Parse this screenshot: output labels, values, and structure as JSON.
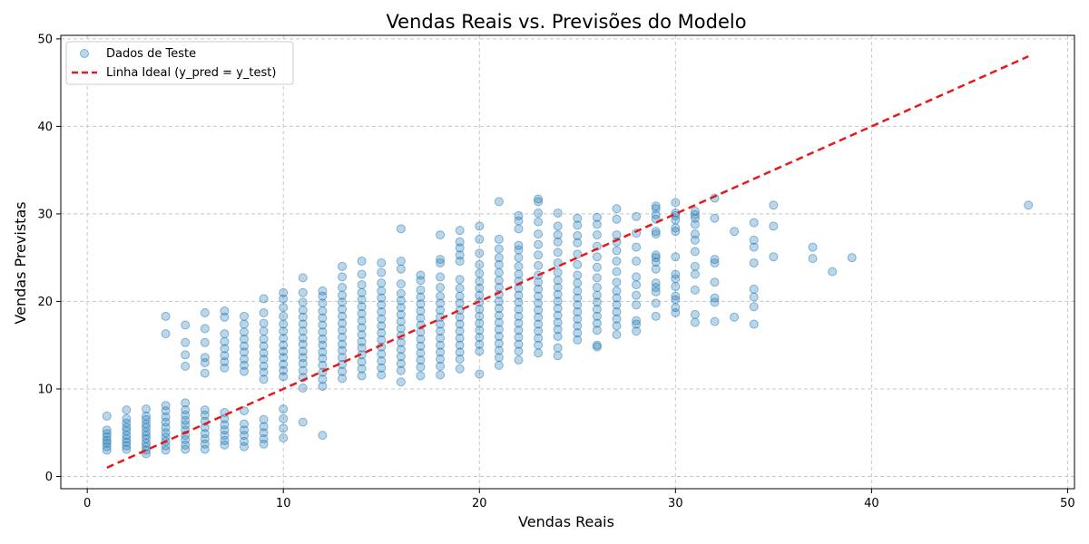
{
  "chart_data": {
    "type": "scatter",
    "title": "Vendas Reais vs. Previsões do Modelo",
    "xlabel": "Vendas Reais",
    "ylabel": "Vendas Previstas",
    "xlim": [
      -1.35,
      50.35
    ],
    "ylim": [
      -1.4,
      50.4
    ],
    "xticks": [
      0,
      10,
      20,
      30,
      40,
      50
    ],
    "yticks": [
      0,
      10,
      20,
      30,
      40,
      50
    ],
    "grid": true,
    "legend_position": "top-left",
    "colors": {
      "scatter": "#1f77b4",
      "ideal_line": "#e41a1c",
      "grid": "#c8c8c8"
    },
    "series": [
      {
        "name": "Dados de Teste",
        "kind": "scatter",
        "columns": [
          {
            "x": 1,
            "y": [
              3.0,
              3.4,
              3.8,
              4.1,
              4.5,
              4.9,
              5.3,
              6.9
            ]
          },
          {
            "x": 2,
            "y": [
              3.1,
              3.5,
              3.9,
              4.3,
              4.7,
              5.2,
              5.6,
              6.1,
              6.6,
              7.6
            ]
          },
          {
            "x": 3,
            "y": [
              2.6,
              3.0,
              3.4,
              3.8,
              4.3,
              4.7,
              5.1,
              5.6,
              6.0,
              6.5,
              6.9,
              7.7
            ]
          },
          {
            "x": 4,
            "y": [
              3.0,
              3.5,
              4.0,
              4.5,
              5.0,
              5.6,
              6.2,
              6.8,
              7.5,
              8.1,
              16.3,
              18.3
            ]
          },
          {
            "x": 5,
            "y": [
              3.1,
              3.6,
              4.2,
              4.7,
              5.3,
              5.9,
              6.4,
              7.0,
              7.6,
              8.4,
              12.6,
              13.9,
              15.3,
              17.3
            ]
          },
          {
            "x": 6,
            "y": [
              3.1,
              3.7,
              4.3,
              4.9,
              5.6,
              6.3,
              7.0,
              7.6,
              11.8,
              13.0,
              13.6,
              15.3,
              16.9,
              18.7
            ]
          },
          {
            "x": 7,
            "y": [
              3.6,
              4.1,
              4.7,
              5.3,
              5.9,
              6.6,
              7.3,
              12.4,
              13.1,
              13.8,
              14.6,
              15.4,
              16.3,
              18.2,
              18.9
            ]
          },
          {
            "x": 8,
            "y": [
              3.4,
              4.0,
              4.7,
              5.3,
              6.0,
              7.5,
              12.0,
              12.7,
              13.4,
              14.2,
              14.9,
              15.7,
              16.5,
              17.4,
              18.3
            ]
          },
          {
            "x": 9,
            "y": [
              3.7,
              4.3,
              5.0,
              5.7,
              6.5,
              11.1,
              11.9,
              12.6,
              13.4,
              14.1,
              14.9,
              15.7,
              16.6,
              17.5,
              18.7,
              20.3
            ]
          },
          {
            "x": 10,
            "y": [
              4.4,
              5.5,
              6.6,
              7.7,
              11.4,
              12.1,
              12.8,
              13.6,
              14.3,
              15.0,
              15.8,
              16.6,
              17.4,
              18.3,
              19.3,
              20.3,
              21.0
            ]
          },
          {
            "x": 11,
            "y": [
              6.2,
              10.1,
              11.3,
              12.1,
              12.9,
              13.6,
              14.3,
              15.1,
              15.8,
              16.6,
              17.4,
              18.2,
              19.0,
              19.9,
              21.0,
              22.7
            ]
          },
          {
            "x": 12,
            "y": [
              4.7,
              10.3,
              11.1,
              11.9,
              12.7,
              13.5,
              14.2,
              15.0,
              15.7,
              16.5,
              17.3,
              18.1,
              18.9,
              19.8,
              20.6,
              21.2
            ]
          },
          {
            "x": 13,
            "y": [
              11.2,
              12.0,
              12.8,
              13.6,
              14.4,
              15.1,
              15.9,
              16.7,
              17.5,
              18.3,
              19.1,
              19.9,
              20.7,
              21.6,
              22.8,
              24.0
            ]
          },
          {
            "x": 14,
            "y": [
              11.5,
              12.3,
              13.1,
              13.9,
              14.7,
              15.4,
              16.2,
              17.0,
              17.8,
              18.6,
              19.4,
              20.2,
              21.0,
              21.9,
              23.1,
              24.6
            ]
          },
          {
            "x": 15,
            "y": [
              11.6,
              12.4,
              13.2,
              14.0,
              14.8,
              15.6,
              16.4,
              17.2,
              18.0,
              18.8,
              19.6,
              20.4,
              21.2,
              22.1,
              23.3,
              24.4
            ]
          },
          {
            "x": 16,
            "y": [
              10.8,
              12.1,
              12.9,
              13.7,
              14.5,
              15.3,
              16.1,
              16.9,
              17.7,
              18.5,
              19.3,
              20.1,
              20.9,
              22.0,
              23.7,
              24.6,
              28.3
            ]
          },
          {
            "x": 17,
            "y": [
              11.5,
              12.5,
              13.3,
              14.1,
              14.9,
              15.7,
              16.5,
              17.3,
              18.1,
              18.9,
              19.7,
              20.5,
              21.3,
              22.4,
              23.0
            ]
          },
          {
            "x": 18,
            "y": [
              11.6,
              12.6,
              13.4,
              14.2,
              15.0,
              15.8,
              16.6,
              17.4,
              18.2,
              19.0,
              19.8,
              20.6,
              21.6,
              22.8,
              24.4,
              24.8,
              27.6
            ]
          },
          {
            "x": 19,
            "y": [
              12.3,
              13.4,
              14.2,
              15.0,
              15.8,
              16.6,
              17.4,
              18.2,
              19.0,
              19.8,
              20.6,
              21.5,
              22.5,
              24.6,
              25.3,
              26.1,
              26.8,
              28.1
            ]
          },
          {
            "x": 20,
            "y": [
              11.7,
              14.3,
              15.1,
              15.9,
              16.7,
              17.5,
              18.3,
              19.1,
              19.9,
              20.7,
              21.5,
              22.3,
              23.2,
              24.2,
              25.5,
              27.1,
              28.6
            ]
          },
          {
            "x": 21,
            "y": [
              12.7,
              13.6,
              14.4,
              15.2,
              16.0,
              16.8,
              17.6,
              18.4,
              19.2,
              20.0,
              20.8,
              21.6,
              22.4,
              23.3,
              24.2,
              25.0,
              26.0,
              27.1,
              31.4
            ]
          },
          {
            "x": 22,
            "y": [
              13.3,
              14.3,
              15.1,
              15.9,
              16.7,
              17.5,
              18.3,
              19.1,
              19.9,
              20.7,
              21.5,
              22.3,
              23.1,
              24.0,
              25.0,
              25.9,
              26.4,
              28.3,
              29.2,
              29.8
            ]
          },
          {
            "x": 23,
            "y": [
              14.1,
              15.0,
              15.8,
              16.6,
              17.4,
              18.2,
              19.0,
              19.8,
              20.6,
              21.4,
              22.2,
              23.0,
              24.1,
              25.3,
              26.5,
              27.7,
              29.1,
              30.1,
              31.4,
              31.7
            ]
          },
          {
            "x": 24,
            "y": [
              13.8,
              14.7,
              16.0,
              16.8,
              17.6,
              18.4,
              19.2,
              20.0,
              20.8,
              21.6,
              22.4,
              23.3,
              24.4,
              25.6,
              26.8,
              27.6,
              28.6,
              30.1
            ]
          },
          {
            "x": 25,
            "y": [
              15.6,
              16.4,
              17.2,
              18.0,
              18.8,
              19.6,
              20.4,
              21.2,
              22.1,
              23.0,
              24.2,
              25.4,
              26.7,
              27.5,
              28.7,
              29.5
            ]
          },
          {
            "x": 26,
            "y": [
              14.8,
              15.0,
              16.7,
              17.5,
              18.3,
              19.1,
              19.9,
              20.7,
              21.6,
              22.7,
              23.9,
              25.1,
              26.3,
              27.6,
              28.8,
              29.6
            ]
          },
          {
            "x": 27,
            "y": [
              16.2,
              17.2,
              18.0,
              18.8,
              19.6,
              20.4,
              21.2,
              22.2,
              23.4,
              24.6,
              25.8,
              26.8,
              27.6,
              29.4,
              30.6
            ]
          },
          {
            "x": 28,
            "y": [
              16.6,
              17.4,
              17.8,
              19.6,
              20.7,
              21.9,
              22.8,
              24.6,
              26.2,
              27.8,
              29.7
            ]
          },
          {
            "x": 29,
            "y": [
              18.3,
              19.8,
              21.1,
              21.6,
              22.1,
              23.7,
              24.5,
              25.0,
              25.3,
              27.7,
              28.0,
              29.4,
              29.9,
              30.6,
              30.9
            ]
          },
          {
            "x": 30,
            "y": [
              18.7,
              19.3,
              20.2,
              20.6,
              21.7,
              22.6,
              23.1,
              25.1,
              28.0,
              28.4,
              29.3,
              29.8,
              30.1,
              31.3
            ]
          },
          {
            "x": 31,
            "y": [
              17.6,
              18.5,
              21.3,
              23.1,
              24.0,
              25.7,
              27.0,
              27.7,
              28.8,
              29.5,
              29.9,
              30.3
            ]
          },
          {
            "x": 32,
            "y": [
              17.7,
              19.9,
              20.4,
              22.2,
              24.4,
              24.8,
              29.5,
              31.8
            ]
          },
          {
            "x": 33,
            "y": [
              18.2,
              28.0
            ]
          },
          {
            "x": 34,
            "y": [
              17.4,
              19.4,
              20.5,
              21.4,
              24.4,
              26.2,
              27.0,
              29.0
            ]
          },
          {
            "x": 35,
            "y": [
              25.1,
              28.6,
              31.0
            ]
          },
          {
            "x": 37,
            "y": [
              24.9,
              26.2
            ]
          },
          {
            "x": 38,
            "y": [
              23.4
            ]
          },
          {
            "x": 39,
            "y": [
              25.0
            ]
          },
          {
            "x": 48,
            "y": [
              31.0
            ]
          }
        ]
      },
      {
        "name": "Linha Ideal (y_pred = y_test)",
        "kind": "line",
        "x": [
          1,
          48
        ],
        "y": [
          1,
          48
        ]
      }
    ]
  }
}
